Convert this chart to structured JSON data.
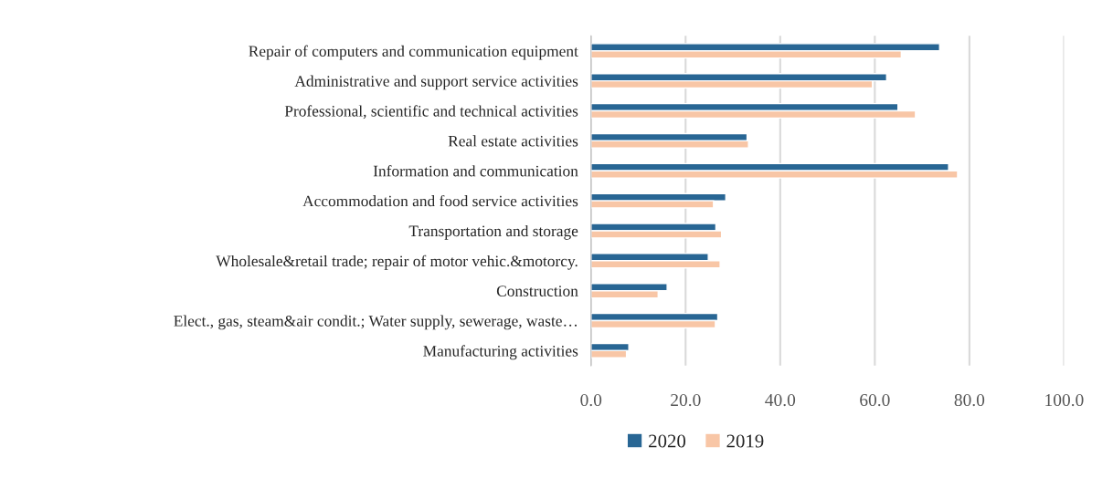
{
  "chart_data": {
    "type": "bar",
    "orientation": "horizontal",
    "categories": [
      "Repair of computers and communication equipment",
      "Administrative and support service activities",
      "Professional, scientific and technical activities",
      "Real estate activities",
      "Information and communication",
      "Accommodation and food service activities",
      "Transportation and storage",
      "Wholesale&retail trade; repair of motor vehic.&motorcy.",
      "Construction",
      "Elect., gas, steam&air condit.; Water supply, sewerage, waste…",
      "Manufacturing activities"
    ],
    "series": [
      {
        "name": "2020",
        "color": "#286694",
        "values": [
          73.7,
          62.5,
          64.9,
          33.0,
          75.6,
          28.5,
          26.4,
          24.8,
          16.1,
          26.8,
          8.0
        ]
      },
      {
        "name": "2019",
        "color": "#f8c6a6",
        "values": [
          65.6,
          59.5,
          68.6,
          33.3,
          77.5,
          25.9,
          27.6,
          27.3,
          14.2,
          26.3,
          7.5
        ]
      }
    ],
    "xlim": [
      0,
      100
    ],
    "xticks": [
      {
        "value": 0,
        "label": "0.0"
      },
      {
        "value": 20,
        "label": "20.0"
      },
      {
        "value": 40,
        "label": "40.0"
      },
      {
        "value": 60,
        "label": "60.0"
      },
      {
        "value": 80,
        "label": "80.0"
      },
      {
        "value": 100,
        "label": "100.0"
      }
    ],
    "grid": "x",
    "legend": "bottom"
  }
}
